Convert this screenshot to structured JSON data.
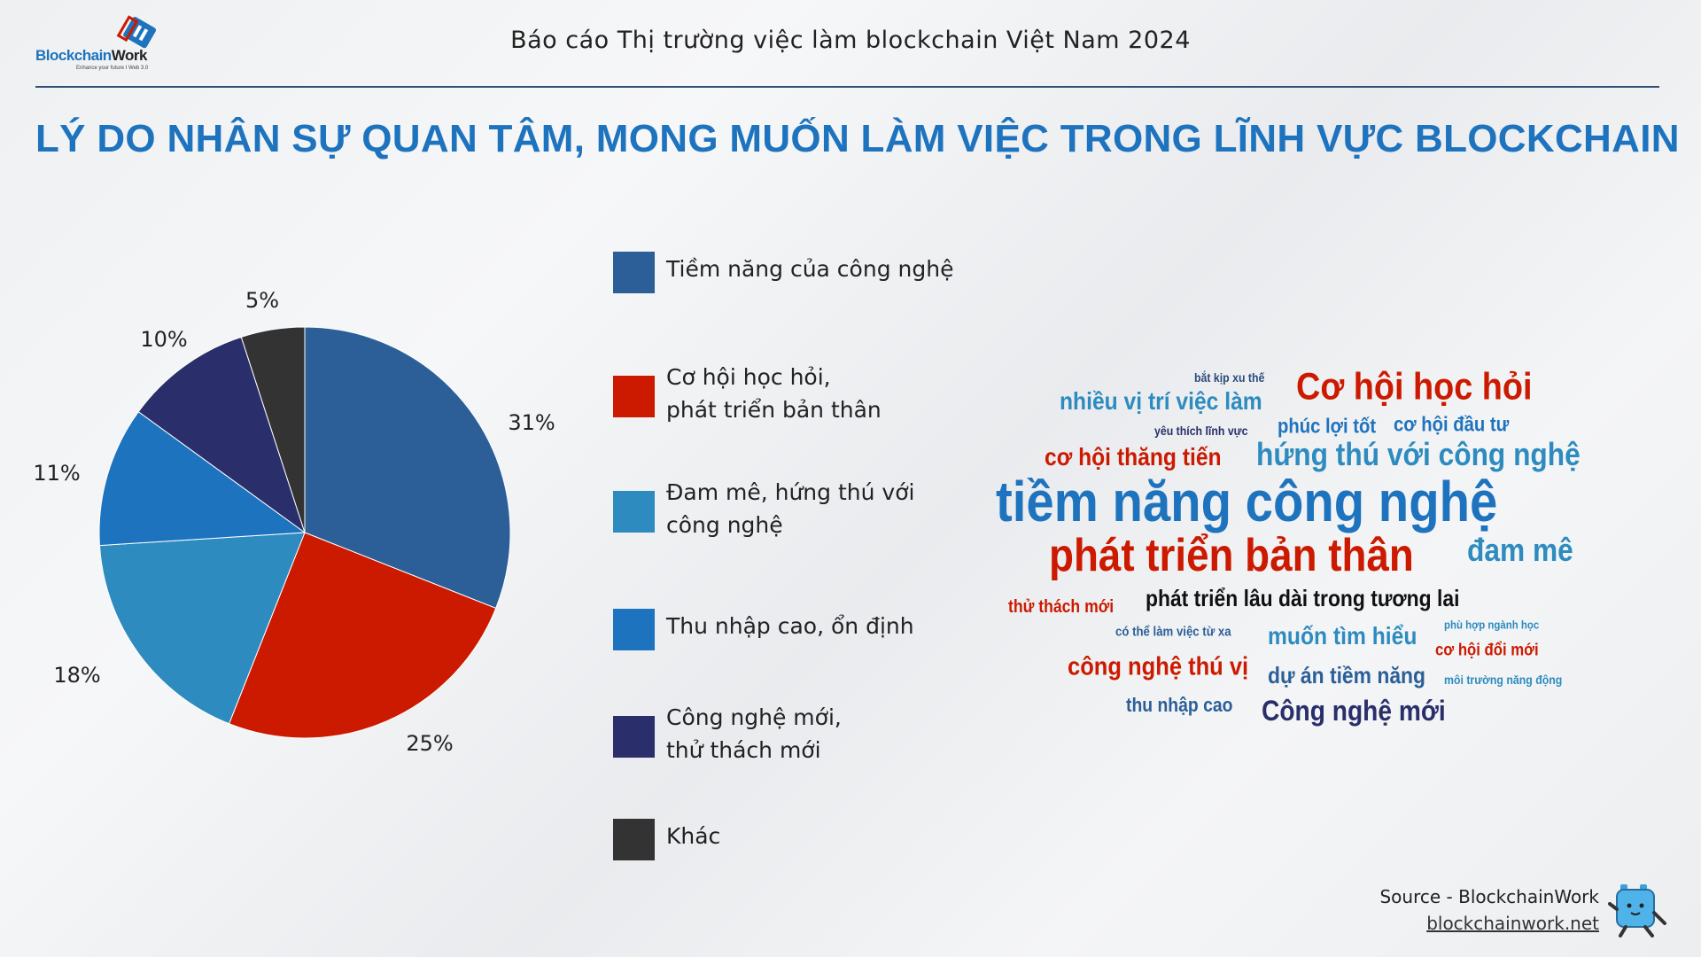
{
  "logo": {
    "name": "BlockchainWork",
    "name_part1": "Blockchain",
    "name_part2": "Work",
    "tagline": "Enhance your future I Web 3.0"
  },
  "header": {
    "title": "Báo cáo Thị trường việc làm blockchain Việt Nam 2024"
  },
  "main_title": "LÝ DO NHÂN SỰ QUAN TÂM, MONG MUỐN LÀM VIỆC TRONG LĨNH VỰC BLOCKCHAIN",
  "chart_data": {
    "type": "pie",
    "title": "",
    "start": "top, clockwise",
    "legend_position": "right",
    "slices": [
      {
        "label": "Tiềm năng của công nghệ",
        "legend": [
          "Tiềm năng của công nghệ"
        ],
        "value": 31,
        "display": "31%",
        "color": "#2c5f98"
      },
      {
        "label": "Cơ hội học hỏi, phát triển bản thân",
        "legend": [
          "Cơ hội học hỏi,",
          "phát triển bản thân"
        ],
        "value": 25,
        "display": "25%",
        "color": "#cc1a00"
      },
      {
        "label": "Đam mê, hứng thú với công nghệ",
        "legend": [
          "Đam mê, hứng thú với",
          "công nghệ"
        ],
        "value": 18,
        "display": "18%",
        "color": "#2d8bbf"
      },
      {
        "label": "Thu nhập cao, ổn định",
        "legend": [
          "Thu nhập cao, ổn định"
        ],
        "value": 11,
        "display": "11%",
        "color": "#1e73be"
      },
      {
        "label": "Công nghệ mới, thử thách mới",
        "legend": [
          "Công nghệ mới,",
          "thử thách mới"
        ],
        "value": 10,
        "display": "10%",
        "color": "#2a2f6b"
      },
      {
        "label": "Khác",
        "legend": [
          "Khác"
        ],
        "value": 5,
        "display": "5%",
        "color": "#333333"
      }
    ]
  },
  "word_cloud": [
    {
      "text": "bắt kịp xu thế",
      "color": "#2c4a7c"
    },
    {
      "text": "nhiều vị trí việc làm",
      "color": "#2d8bbf"
    },
    {
      "text": "Cơ hội học hỏi",
      "color": "#cc1a00"
    },
    {
      "text": "yêu thích lĩnh vực",
      "color": "#2a2f6b"
    },
    {
      "text": "phúc lợi tốt",
      "color": "#1e73be"
    },
    {
      "text": "cơ hội đầu tư",
      "color": "#1e73be"
    },
    {
      "text": "cơ hội thăng tiến",
      "color": "#cc1a00"
    },
    {
      "text": "hứng thú với công nghệ",
      "color": "#2d8bbf"
    },
    {
      "text": "tiềm năng công nghệ",
      "color": "#1e73be"
    },
    {
      "text": "phát triển bản thân",
      "color": "#cc1a00"
    },
    {
      "text": "đam mê",
      "color": "#2d8bbf"
    },
    {
      "text": "thử thách mới",
      "color": "#cc1a00"
    },
    {
      "text": "phát triển lâu dài trong tương lai",
      "color": "#111111"
    },
    {
      "text": "có thể làm việc từ xa",
      "color": "#2c5f98"
    },
    {
      "text": "muốn tìm hiểu",
      "color": "#2d8bbf"
    },
    {
      "text": "phù hợp ngành học",
      "color": "#2d8bbf"
    },
    {
      "text": "cơ hội đổi mới",
      "color": "#cc1a00"
    },
    {
      "text": "công nghệ thú vị",
      "color": "#cc1a00"
    },
    {
      "text": "dự án tiềm năng",
      "color": "#2c5f98"
    },
    {
      "text": "môi trường năng động",
      "color": "#2d8bbf"
    },
    {
      "text": "thu nhập cao",
      "color": "#2c5f98"
    },
    {
      "text": "Công nghệ mới",
      "color": "#2a2f6b"
    }
  ],
  "footer": {
    "source": "Source - BlockchainWork",
    "website": "blockchainwork.net"
  }
}
